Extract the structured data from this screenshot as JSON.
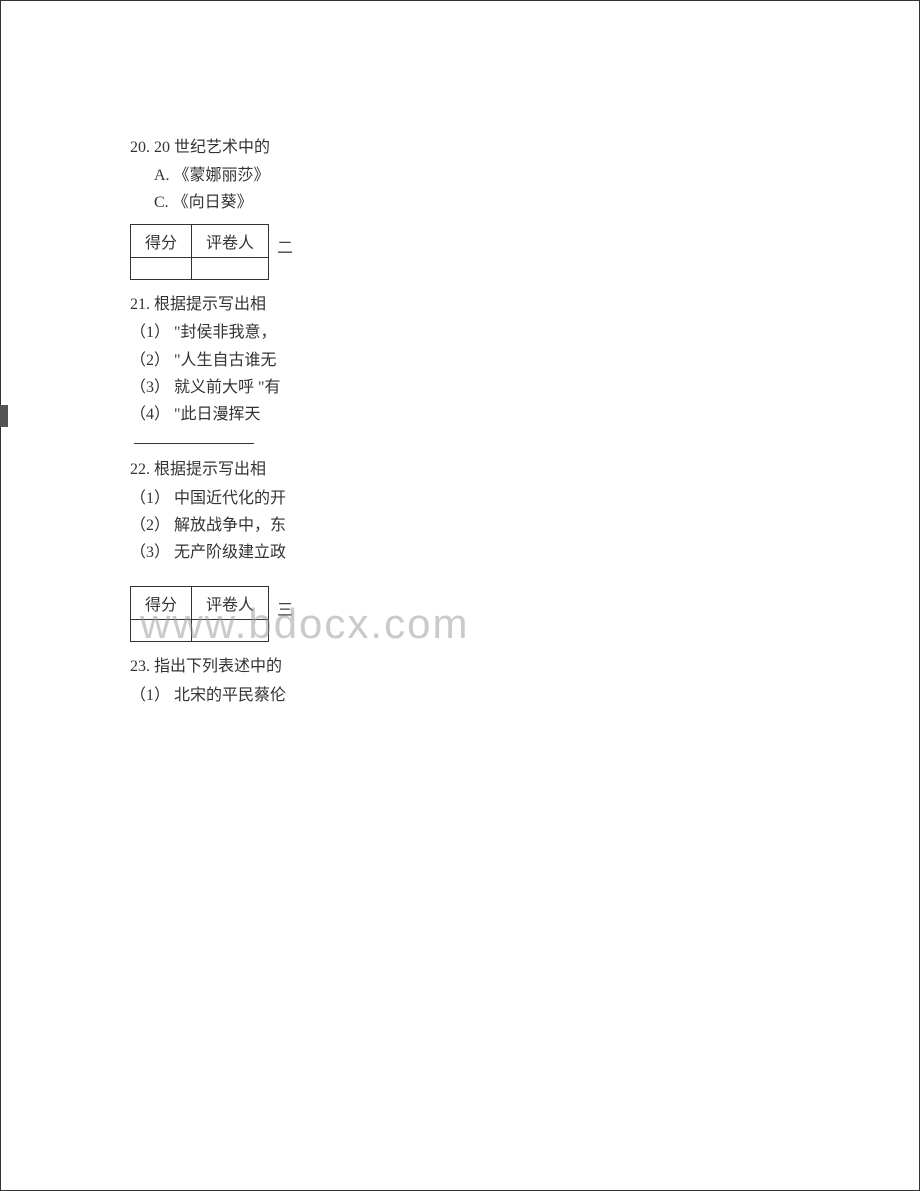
{
  "q20": {
    "stem": "20. 20 世纪艺术中的",
    "optA": "A.  《蒙娜丽莎》",
    "optC": "C.  《向日葵》"
  },
  "scoreTable": {
    "col1": "得分",
    "col2": "评卷人"
  },
  "sectionMarker2": "二",
  "q21": {
    "stem": "21. 根据提示写出相",
    "s1": "（1）  \"封侯非我意，",
    "s2": "（2）  \"人生自古谁无",
    "s3": "（3）  就义前大呼 \"有",
    "s4": "（4）  \"此日漫挥天"
  },
  "q22": {
    "stem": "22. 根据提示写出相",
    "s1": "（1）  中国近代化的开",
    "s2": "（2）  解放战争中，东",
    "s3": "（3）  无产阶级建立政"
  },
  "sectionMarker3": "三",
  "q23": {
    "stem": "23. 指出下列表述中的",
    "s1": "（1）  北宋的平民蔡伦"
  },
  "watermark": "www.bdocx.com",
  "colors": {
    "text": "#333333",
    "border": "#333333",
    "background": "#ffffff",
    "tab": "#555555",
    "watermark": "rgba(150,150,150,0.5)"
  }
}
